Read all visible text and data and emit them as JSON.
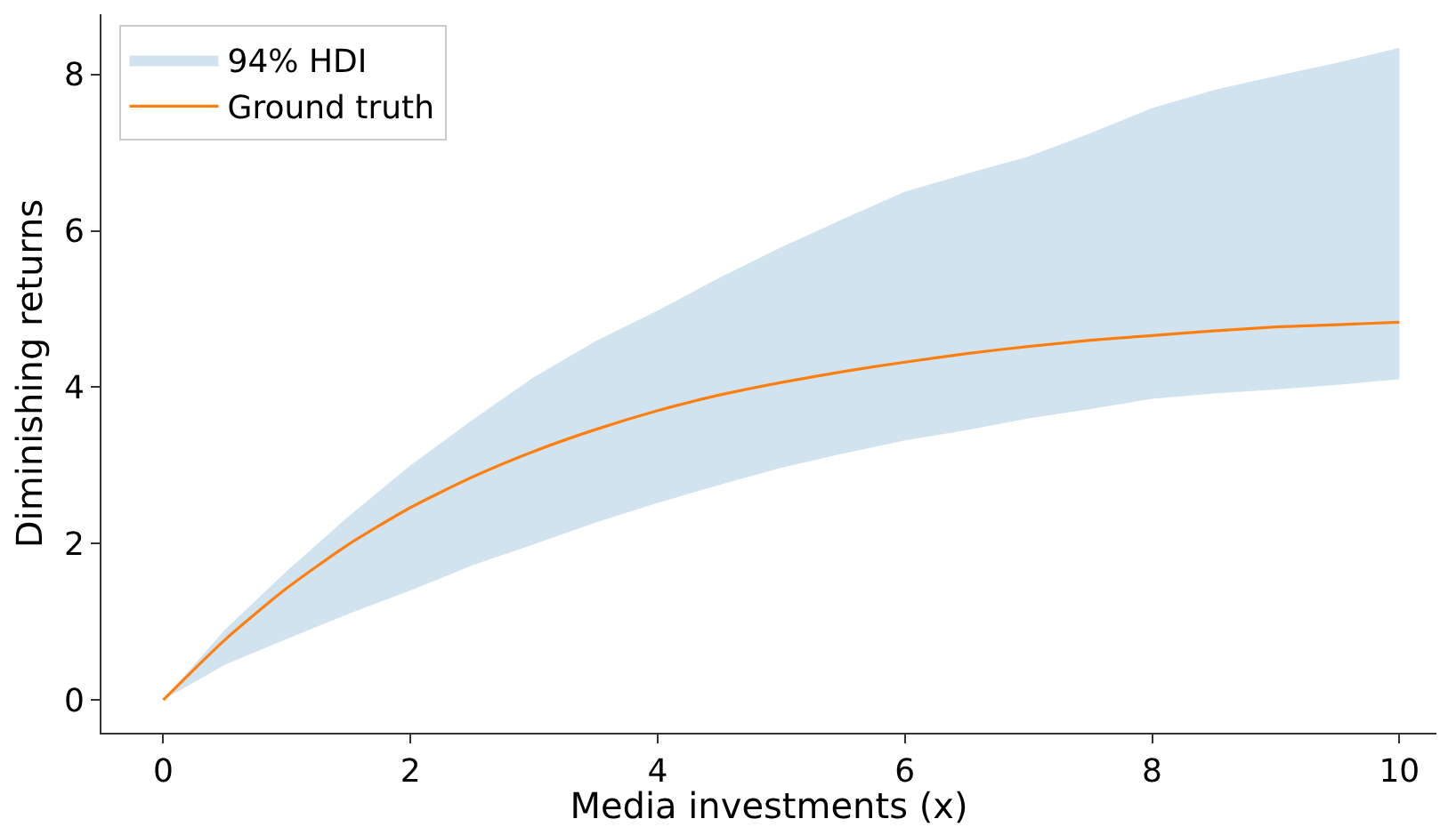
{
  "chart_data": {
    "type": "line",
    "xlabel": "Media investments (x)",
    "ylabel": "Diminishing returns",
    "x": [
      0,
      0.5,
      1,
      1.5,
      2,
      2.5,
      3,
      3.5,
      4,
      4.5,
      5,
      5.5,
      6,
      6.5,
      7,
      7.5,
      8,
      8.5,
      9,
      9.5,
      10
    ],
    "xlim": [
      -0.5,
      10.3
    ],
    "xticks": [
      0,
      2,
      4,
      6,
      8,
      10
    ],
    "ylim": [
      -0.42,
      8.77
    ],
    "yticks": [
      0,
      2,
      4,
      6,
      8
    ],
    "grid": false,
    "legend": "top left",
    "series": [
      {
        "name": "94% HDI",
        "type": "area",
        "color": "#d2e3f0",
        "values": [
          null,
          null,
          null,
          null,
          null,
          null,
          null,
          null,
          null,
          null,
          null,
          null,
          null,
          null,
          null,
          null,
          null,
          null,
          null,
          null,
          null
        ],
        "lower": [
          0,
          0.45,
          0.78,
          1.1,
          1.4,
          1.72,
          1.99,
          2.27,
          2.52,
          2.75,
          2.97,
          3.15,
          3.32,
          3.45,
          3.6,
          3.72,
          3.85,
          3.92,
          3.97,
          4.03,
          4.1
        ],
        "upper": [
          0,
          0.9,
          1.65,
          2.35,
          3.0,
          3.58,
          4.13,
          4.59,
          4.98,
          5.4,
          5.79,
          6.15,
          6.5,
          6.73,
          6.95,
          7.25,
          7.57,
          7.8,
          7.98,
          8.15,
          8.34
        ]
      },
      {
        "name": "Ground truth",
        "type": "line",
        "color": "#ff7f0e",
        "values": [
          0,
          0.77,
          1.43,
          1.99,
          2.46,
          2.85,
          3.18,
          3.46,
          3.7,
          3.9,
          4.06,
          4.2,
          4.32,
          4.43,
          4.52,
          4.6,
          4.66,
          4.72,
          4.77,
          4.8,
          4.83
        ]
      }
    ]
  }
}
